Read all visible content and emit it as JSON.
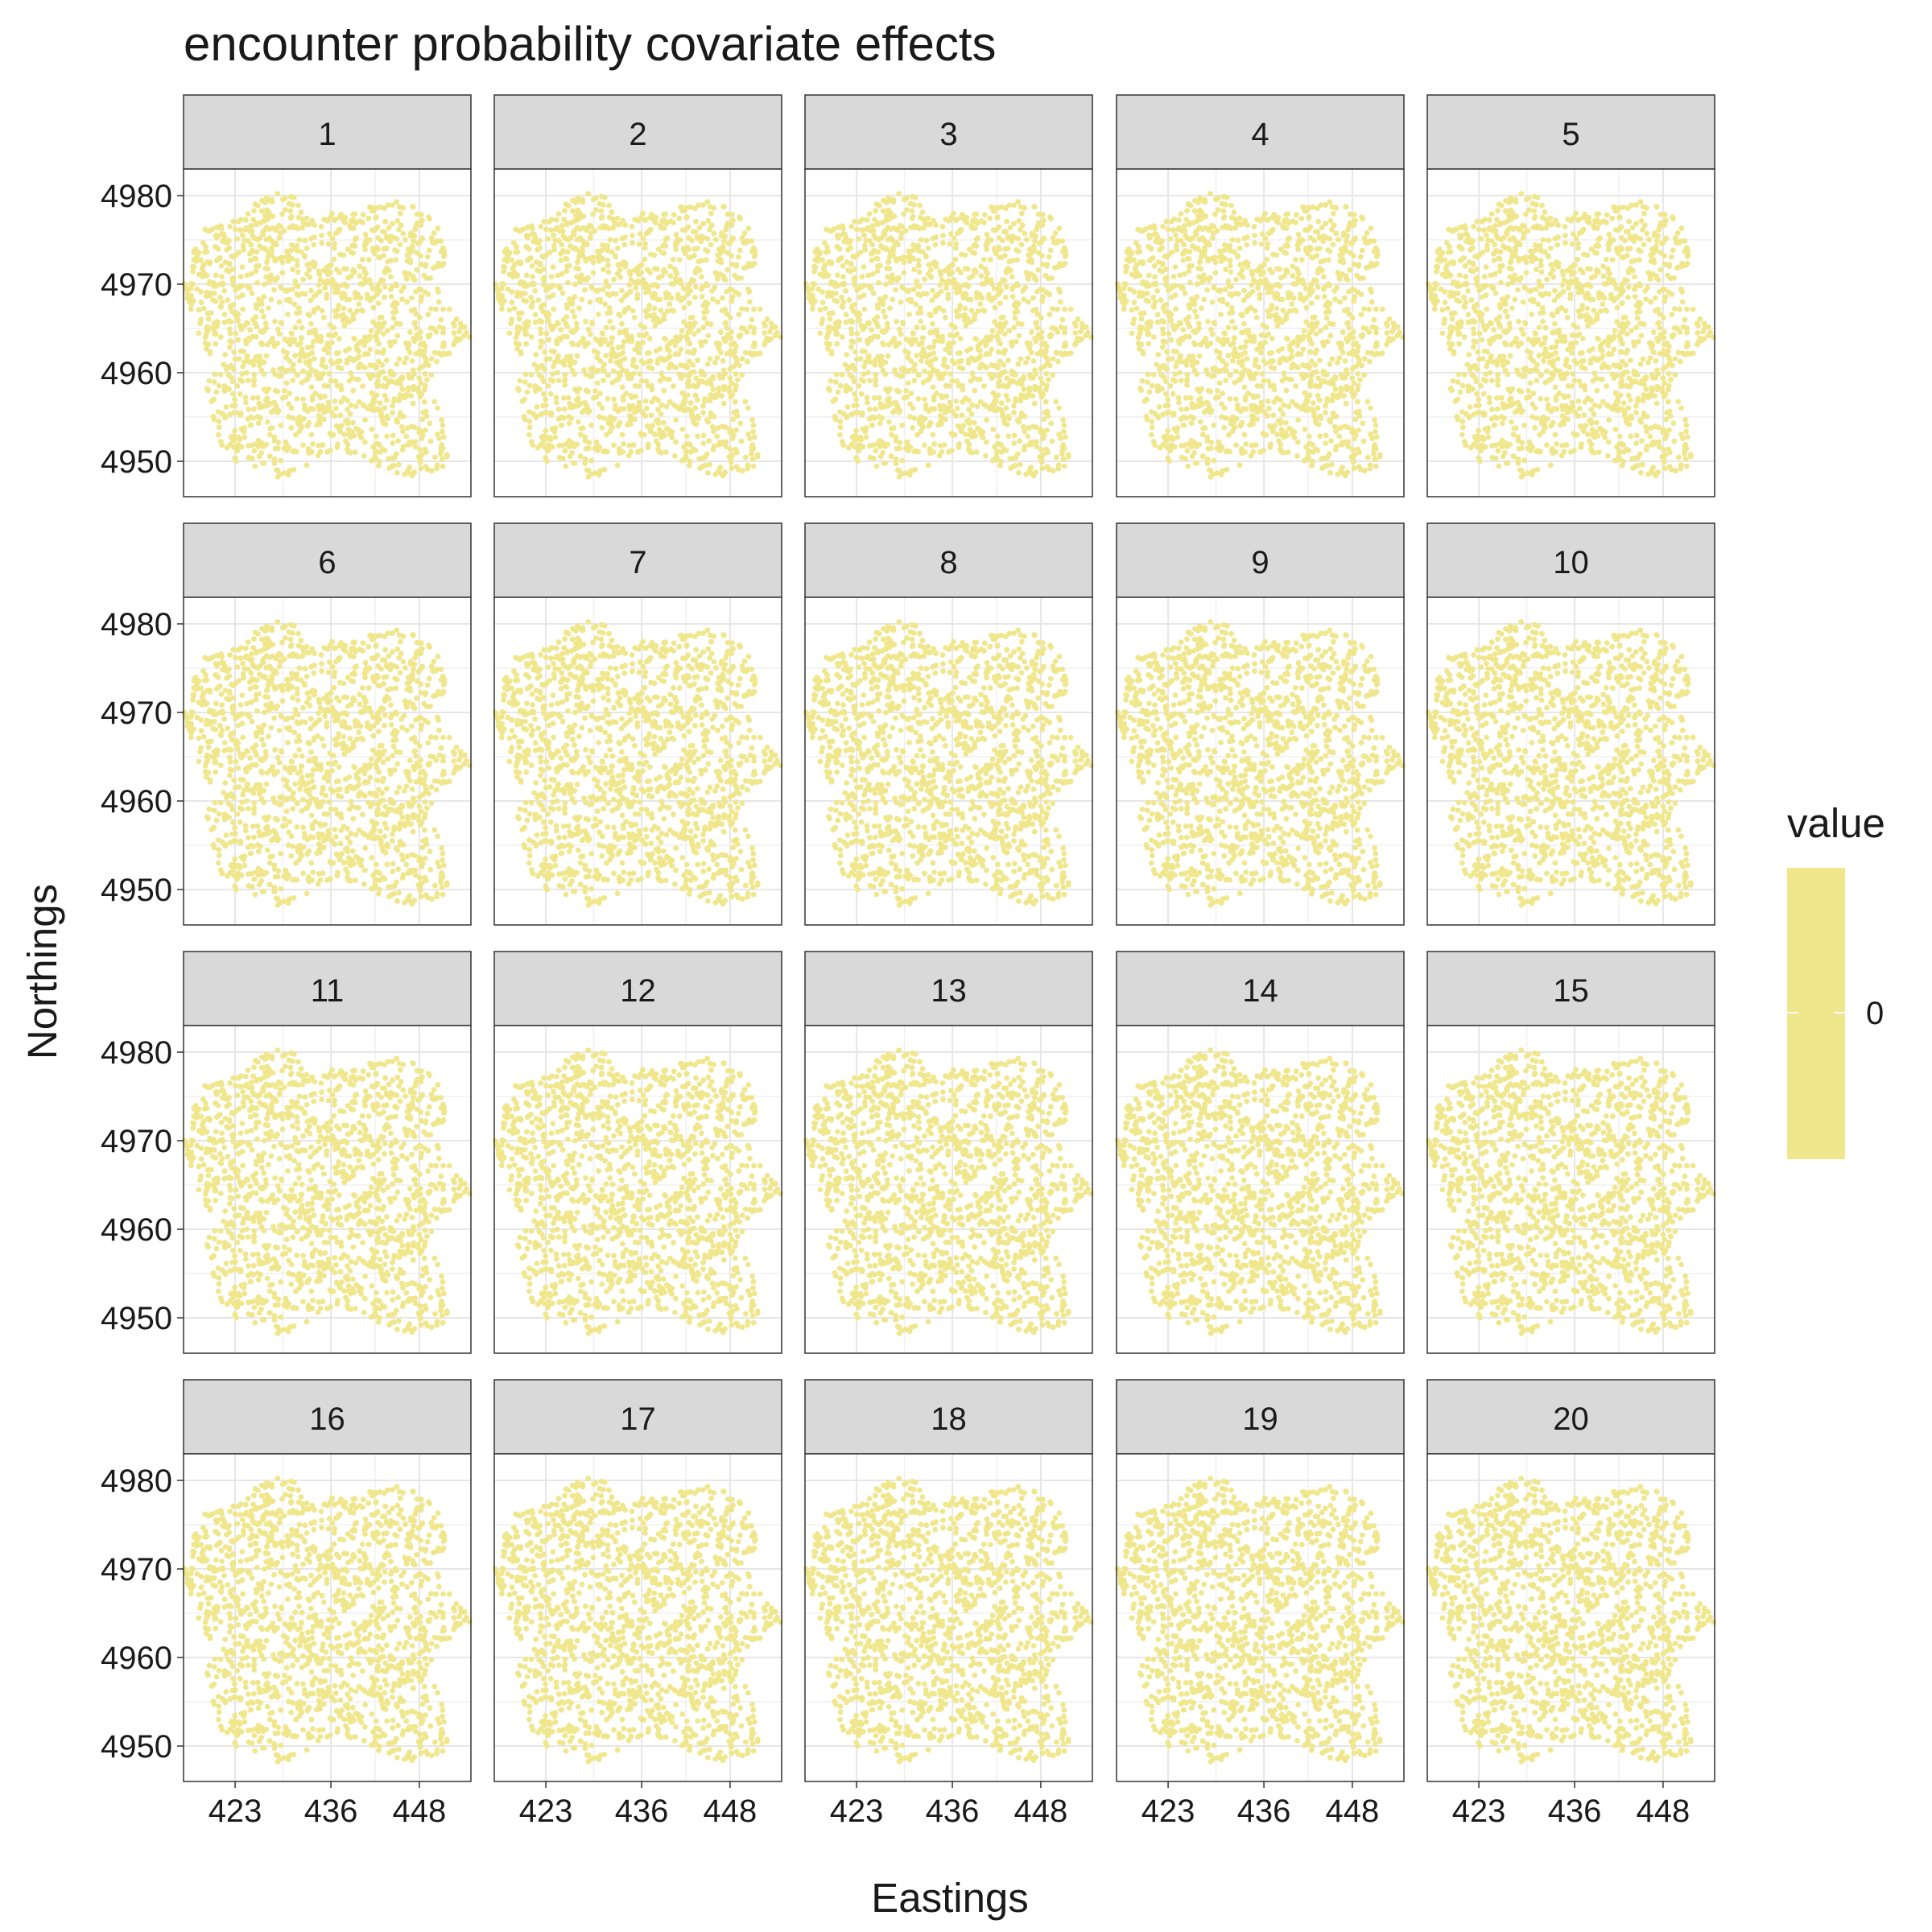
{
  "chart_data": {
    "type": "scatter",
    "title": "encounter probability covariate effects",
    "xlabel": "Eastings",
    "ylabel": "Northings",
    "facets": [
      "1",
      "2",
      "3",
      "4",
      "5",
      "6",
      "7",
      "8",
      "9",
      "10",
      "11",
      "12",
      "13",
      "14",
      "15",
      "16",
      "17",
      "18",
      "19",
      "20"
    ],
    "facet_layout": {
      "rows": 4,
      "cols": 5
    },
    "x_ticks": [
      423,
      436,
      448
    ],
    "y_ticks": [
      4950,
      4960,
      4970,
      4980
    ],
    "xlim": [
      416,
      455
    ],
    "ylim": [
      4946,
      4983
    ],
    "point_color": "#F0E68C",
    "point_value": 0,
    "grid": true,
    "legend": {
      "title": "value",
      "position": "right",
      "labels": [
        "0"
      ],
      "color": "#F0E68C"
    },
    "points_note_free": true,
    "region_outline": [
      [
        418,
        4976
      ],
      [
        422,
        4977
      ],
      [
        425,
        4979
      ],
      [
        428,
        4980.5
      ],
      [
        431,
        4980
      ],
      [
        434,
        4978
      ],
      [
        438,
        4978
      ],
      [
        442,
        4979
      ],
      [
        446,
        4979.5
      ],
      [
        449,
        4978
      ],
      [
        451,
        4976
      ],
      [
        452,
        4973
      ],
      [
        450,
        4971
      ],
      [
        451,
        4968
      ],
      [
        454,
        4966
      ],
      [
        455,
        4964
      ],
      [
        452,
        4962
      ],
      [
        449,
        4959
      ],
      [
        450,
        4957
      ],
      [
        451,
        4955
      ],
      [
        452,
        4953
      ],
      [
        452,
        4950
      ],
      [
        450,
        4948.5
      ],
      [
        447,
        4948
      ],
      [
        444,
        4949
      ],
      [
        441,
        4950
      ],
      [
        438,
        4951
      ],
      [
        435,
        4951
      ],
      [
        432,
        4949
      ],
      [
        429,
        4948
      ],
      [
        426,
        4949
      ],
      [
        423,
        4950
      ],
      [
        421,
        4952
      ],
      [
        420,
        4955
      ],
      [
        419,
        4958
      ],
      [
        420,
        4961
      ],
      [
        418,
        4964
      ],
      [
        417,
        4967
      ],
      [
        416,
        4970
      ],
      [
        417,
        4973
      ]
    ]
  }
}
